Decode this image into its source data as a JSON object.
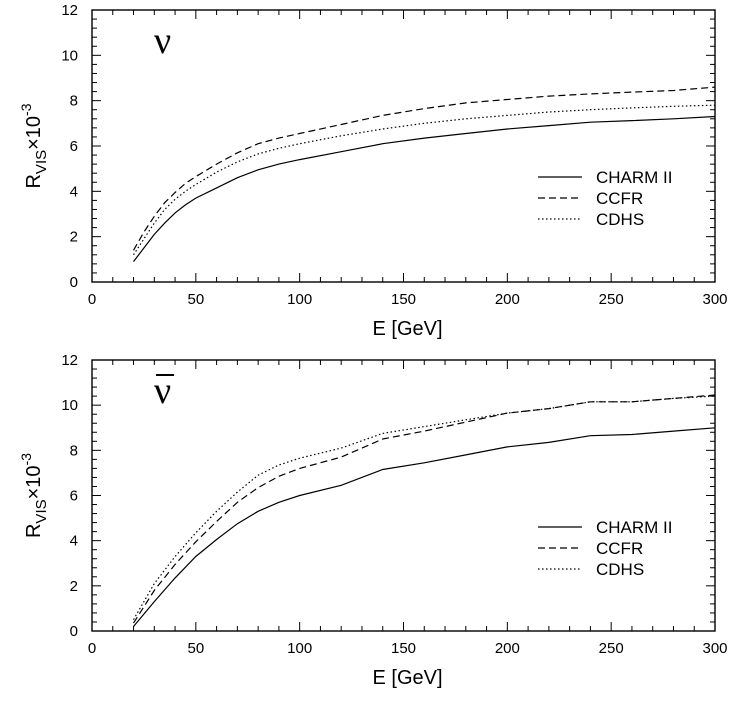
{
  "chart_data": [
    {
      "type": "line",
      "panel_symbol": "ν",
      "symbol_overline": false,
      "xlabel": "E [GeV]",
      "ylabel_main": "R",
      "ylabel_sub": "VIS",
      "ylabel_times": "×10",
      "ylabel_exp": "-3",
      "xlim": [
        0,
        300
      ],
      "ylim": [
        0,
        12
      ],
      "xticks": [
        0,
        50,
        100,
        150,
        200,
        250,
        300
      ],
      "yticks": [
        0,
        2,
        4,
        6,
        8,
        10,
        12
      ],
      "legend_position": "right",
      "series": [
        {
          "name": "CHARM II",
          "style": "solid",
          "x": [
            20,
            25,
            30,
            35,
            40,
            45,
            50,
            60,
            70,
            80,
            90,
            100,
            120,
            140,
            160,
            180,
            200,
            220,
            240,
            260,
            280,
            300
          ],
          "y": [
            0.9,
            1.5,
            2.1,
            2.6,
            3.05,
            3.4,
            3.7,
            4.15,
            4.6,
            4.95,
            5.2,
            5.4,
            5.75,
            6.1,
            6.35,
            6.55,
            6.75,
            6.9,
            7.05,
            7.12,
            7.2,
            7.3
          ]
        },
        {
          "name": "CCFR",
          "style": "dashed",
          "x": [
            20,
            25,
            30,
            35,
            40,
            45,
            50,
            60,
            70,
            80,
            90,
            100,
            120,
            140,
            160,
            180,
            200,
            220,
            240,
            260,
            280,
            300
          ],
          "y": [
            1.4,
            2.2,
            2.9,
            3.5,
            3.95,
            4.35,
            4.65,
            5.2,
            5.7,
            6.1,
            6.35,
            6.55,
            6.95,
            7.35,
            7.65,
            7.9,
            8.05,
            8.2,
            8.3,
            8.38,
            8.45,
            8.6
          ]
        },
        {
          "name": "CDHS",
          "style": "dotted",
          "x": [
            20,
            25,
            30,
            35,
            40,
            45,
            50,
            60,
            70,
            80,
            90,
            100,
            120,
            140,
            160,
            180,
            200,
            220,
            240,
            260,
            280,
            300
          ],
          "y": [
            1.2,
            1.9,
            2.6,
            3.2,
            3.65,
            4.0,
            4.3,
            4.85,
            5.3,
            5.65,
            5.9,
            6.1,
            6.45,
            6.75,
            7.0,
            7.2,
            7.35,
            7.5,
            7.6,
            7.68,
            7.75,
            7.8
          ]
        }
      ]
    },
    {
      "type": "line",
      "panel_symbol": "ν",
      "symbol_overline": true,
      "xlabel": "E [GeV]",
      "ylabel_main": "R",
      "ylabel_sub": "VIS",
      "ylabel_times": "×10",
      "ylabel_exp": "-3",
      "xlim": [
        0,
        300
      ],
      "ylim": [
        0,
        12
      ],
      "xticks": [
        0,
        50,
        100,
        150,
        200,
        250,
        300
      ],
      "yticks": [
        0,
        2,
        4,
        6,
        8,
        10,
        12
      ],
      "legend_position": "right",
      "series": [
        {
          "name": "CHARM II",
          "style": "solid",
          "x": [
            20,
            30,
            40,
            50,
            60,
            70,
            80,
            90,
            100,
            120,
            140,
            160,
            180,
            200,
            220,
            240,
            260,
            280,
            300
          ],
          "y": [
            0.2,
            1.3,
            2.35,
            3.3,
            4.05,
            4.75,
            5.3,
            5.7,
            6.0,
            6.45,
            7.15,
            7.45,
            7.8,
            8.15,
            8.35,
            8.65,
            8.7,
            8.85,
            9.0
          ]
        },
        {
          "name": "CCFR",
          "style": "dashed",
          "x": [
            20,
            30,
            40,
            50,
            60,
            70,
            80,
            90,
            100,
            120,
            140,
            160,
            180,
            200,
            220,
            240,
            260,
            280,
            300
          ],
          "y": [
            0.35,
            1.8,
            2.95,
            3.95,
            4.85,
            5.7,
            6.35,
            6.85,
            7.2,
            7.7,
            8.5,
            8.85,
            9.25,
            9.65,
            9.85,
            10.15,
            10.15,
            10.3,
            10.45
          ]
        },
        {
          "name": "CDHS",
          "style": "dotted",
          "x": [
            20,
            30,
            40,
            50,
            60,
            70,
            80,
            90,
            100,
            120,
            140,
            160,
            180,
            200,
            220,
            240,
            260,
            280,
            300
          ],
          "y": [
            0.5,
            2.1,
            3.3,
            4.35,
            5.3,
            6.15,
            6.9,
            7.35,
            7.65,
            8.1,
            8.75,
            9.05,
            9.35,
            9.65,
            9.85,
            10.15,
            10.15,
            10.3,
            10.4
          ]
        }
      ]
    }
  ]
}
